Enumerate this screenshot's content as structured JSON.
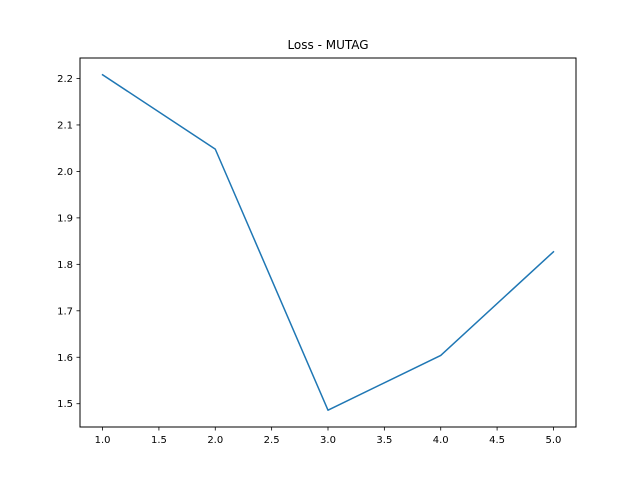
{
  "chart_data": {
    "type": "line",
    "title": "Loss - MUTAG",
    "xlabel": "",
    "ylabel": "",
    "x": [
      1,
      2,
      3,
      4,
      5
    ],
    "series": [
      {
        "values": [
          2.208,
          2.048,
          1.486,
          1.604,
          1.827
        ],
        "color": "#1f77b4"
      }
    ],
    "xlim": [
      0.8,
      5.2
    ],
    "ylim": [
      1.4499,
      2.2441
    ],
    "xticks": [
      1.0,
      1.5,
      2.0,
      2.5,
      3.0,
      3.5,
      4.0,
      4.5,
      5.0
    ],
    "xtick_labels": [
      "1.0",
      "1.5",
      "2.0",
      "2.5",
      "3.0",
      "3.5",
      "4.0",
      "4.5",
      "5.0"
    ],
    "yticks": [
      1.5,
      1.6,
      1.7,
      1.8,
      1.9,
      2.0,
      2.1,
      2.2
    ],
    "ytick_labels": [
      "1.5",
      "1.6",
      "1.7",
      "1.8",
      "1.9",
      "2.0",
      "2.1",
      "2.2"
    ],
    "grid": false,
    "legend": "none"
  }
}
